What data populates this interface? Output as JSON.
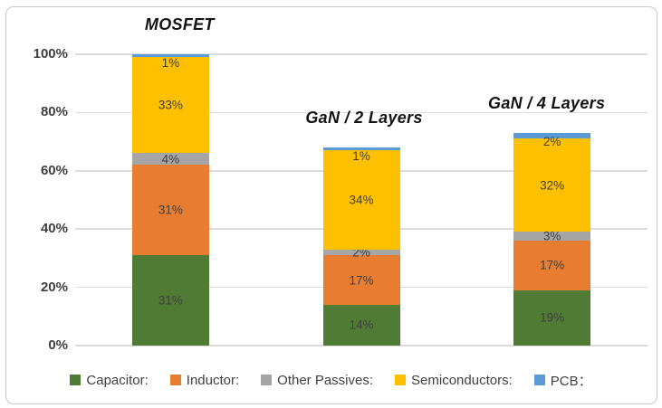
{
  "chart_data": {
    "type": "bar",
    "stacked": true,
    "categories": [
      "MOSFET",
      "GaN / 2 Layers",
      "GaN / 4 Layers"
    ],
    "series": [
      {
        "name": "Capacitor:",
        "color": "#507b35",
        "values": [
          31,
          14,
          19
        ],
        "labels": [
          "31%",
          "14%",
          "19%"
        ]
      },
      {
        "name": "Inductor:",
        "color": "#e87d31",
        "values": [
          31,
          17,
          17
        ],
        "labels": [
          "31%",
          "17%",
          "17%"
        ]
      },
      {
        "name": "Other Passives:",
        "color": "#a6a6a6",
        "values": [
          4,
          2,
          3
        ],
        "labels": [
          "4%",
          "2%",
          "3%"
        ]
      },
      {
        "name": "Semiconductors:",
        "color": "#ffc000",
        "values": [
          33,
          34,
          32
        ],
        "labels": [
          "33%",
          "34%",
          "32%"
        ]
      },
      {
        "name": "PCB：",
        "color": "#5b9bd5",
        "values": [
          1,
          1,
          2
        ],
        "labels": [
          "1%",
          "1%",
          "2%"
        ]
      }
    ],
    "totals": [
      100,
      68,
      73
    ],
    "yticks": [
      "0%",
      "20%",
      "40%",
      "60%",
      "80%",
      "100%"
    ],
    "ytick_values": [
      0,
      20,
      40,
      60,
      80,
      100
    ],
    "ylim": [
      0,
      100
    ],
    "grid": true,
    "legend_position": "bottom",
    "colors": {
      "grid": "#dcdcdc",
      "data_label": "#404040",
      "axis_label": "#3f3f3f",
      "title_text": "#141414",
      "frame_border": "#c9c9c9",
      "background": "#ffffff"
    }
  }
}
